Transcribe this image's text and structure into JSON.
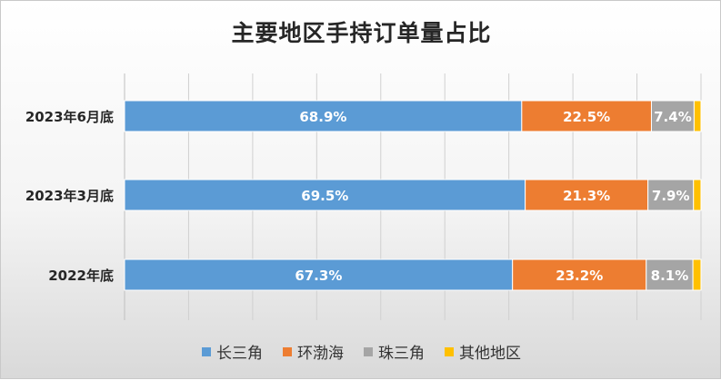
{
  "chart_data": {
    "type": "bar",
    "orientation": "horizontal",
    "stacked": true,
    "title": "主要地区手持订单量占比",
    "categories": [
      "2023年6月底",
      "2023年3月底",
      "2022年底"
    ],
    "series": [
      {
        "name": "长三角",
        "color": "#5b9bd5",
        "values": [
          68.9,
          69.5,
          67.3
        ],
        "labels": [
          "68.9%",
          "69.5%",
          "67.3%"
        ]
      },
      {
        "name": "环渤海",
        "color": "#ed7d31",
        "values": [
          22.5,
          21.3,
          23.2
        ],
        "labels": [
          "22.5%",
          "21.3%",
          "23.2%"
        ]
      },
      {
        "name": "珠三角",
        "color": "#a5a5a5",
        "values": [
          7.4,
          7.9,
          8.1
        ],
        "labels": [
          "7.4%",
          "7.9%",
          "8.1%"
        ]
      },
      {
        "name": "其他地区",
        "color": "#ffc000",
        "values": [
          1.2,
          1.3,
          1.4
        ],
        "labels": [
          "",
          "",
          ""
        ]
      }
    ],
    "xlim": [
      0,
      100
    ],
    "grid": true,
    "legend": "bottom"
  }
}
